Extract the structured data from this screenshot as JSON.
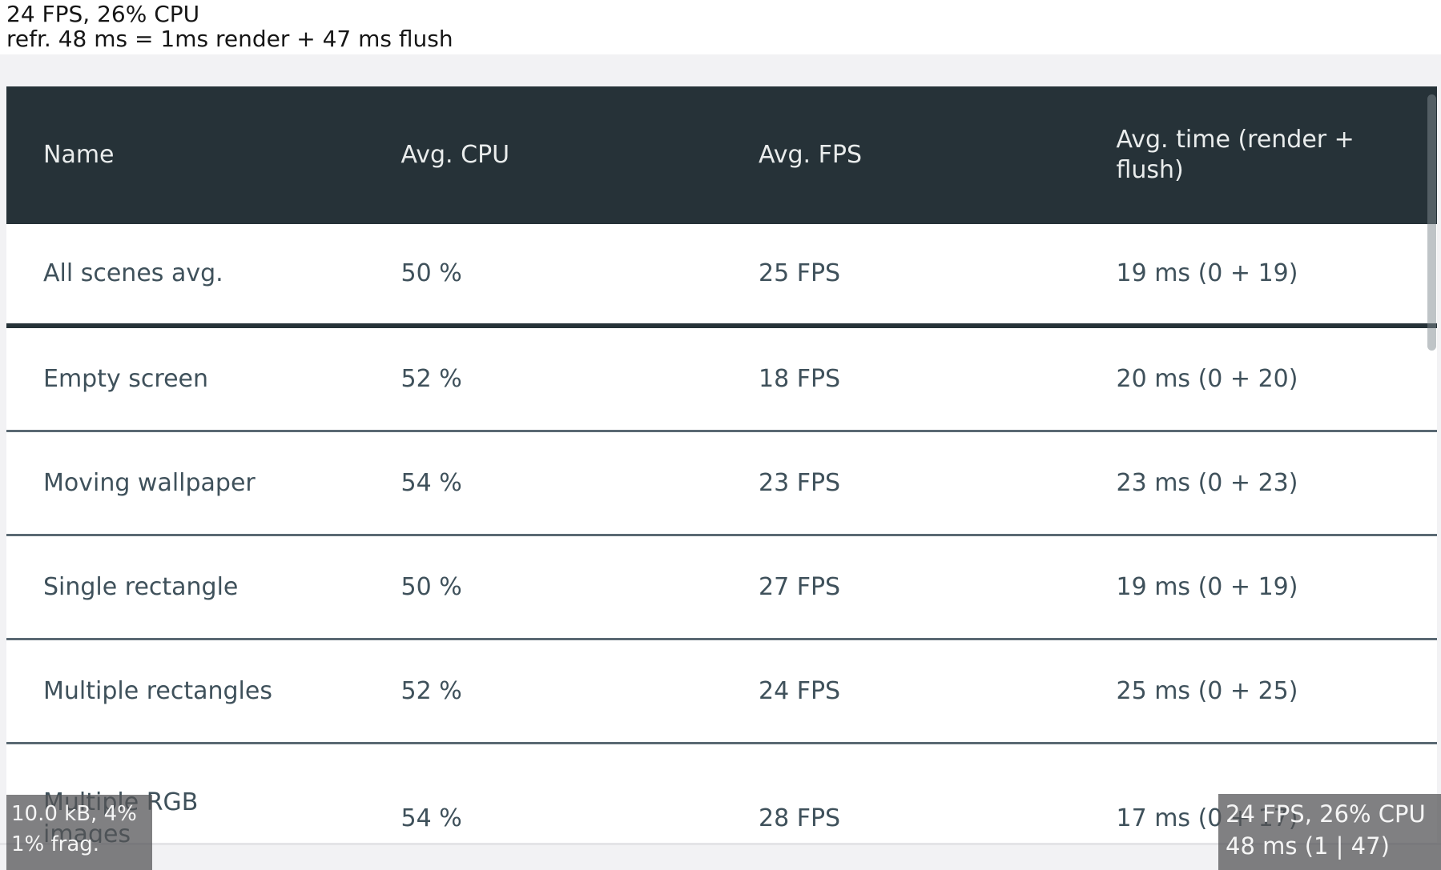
{
  "status_top": {
    "line1": "24 FPS, 26% CPU",
    "line2": "refr. 48 ms = 1ms render + 47 ms flush"
  },
  "table": {
    "columns": [
      "Name",
      "Avg. CPU",
      "Avg. FPS",
      "Avg. time (render + flush)"
    ],
    "rows": [
      {
        "name": "All scenes avg.",
        "cpu": "50 %",
        "fps": "25 FPS",
        "time": "19 ms (0 + 19)"
      },
      {
        "name": "Empty screen",
        "cpu": "52 %",
        "fps": "18 FPS",
        "time": "20 ms (0 + 20)"
      },
      {
        "name": "Moving wallpaper",
        "cpu": "54 %",
        "fps": "23 FPS",
        "time": "23 ms (0 + 23)"
      },
      {
        "name": "Single rectangle",
        "cpu": "50 %",
        "fps": "27 FPS",
        "time": "19 ms (0 + 19)"
      },
      {
        "name": "Multiple rectangles",
        "cpu": "52 %",
        "fps": "24 FPS",
        "time": "25 ms (0 + 25)"
      },
      {
        "name": "Multiple RGB images",
        "cpu": "54 %",
        "fps": "28 FPS",
        "time": "17 ms (0 + 17)"
      }
    ]
  },
  "overlays": {
    "memory": {
      "line1": "10.0 kB, 4%",
      "line2": "1% frag."
    },
    "performance": {
      "line1": "24 FPS, 26% CPU",
      "line2": "48 ms (1 | 47)"
    }
  },
  "colors": {
    "header_bg": "#263238",
    "header_text": "#e9ecec",
    "row_bg": "#ffffff",
    "row_text": "#3f515b",
    "divider_strong": "#263238",
    "divider": "#5a6973",
    "page_band": "#f2f2f4",
    "status_text": "#161616",
    "overlay_bg": "rgba(84,84,86,0.74)",
    "overlay_text": "#f5f5f5",
    "scrollbar": "rgba(128,138,144,0.5)"
  }
}
